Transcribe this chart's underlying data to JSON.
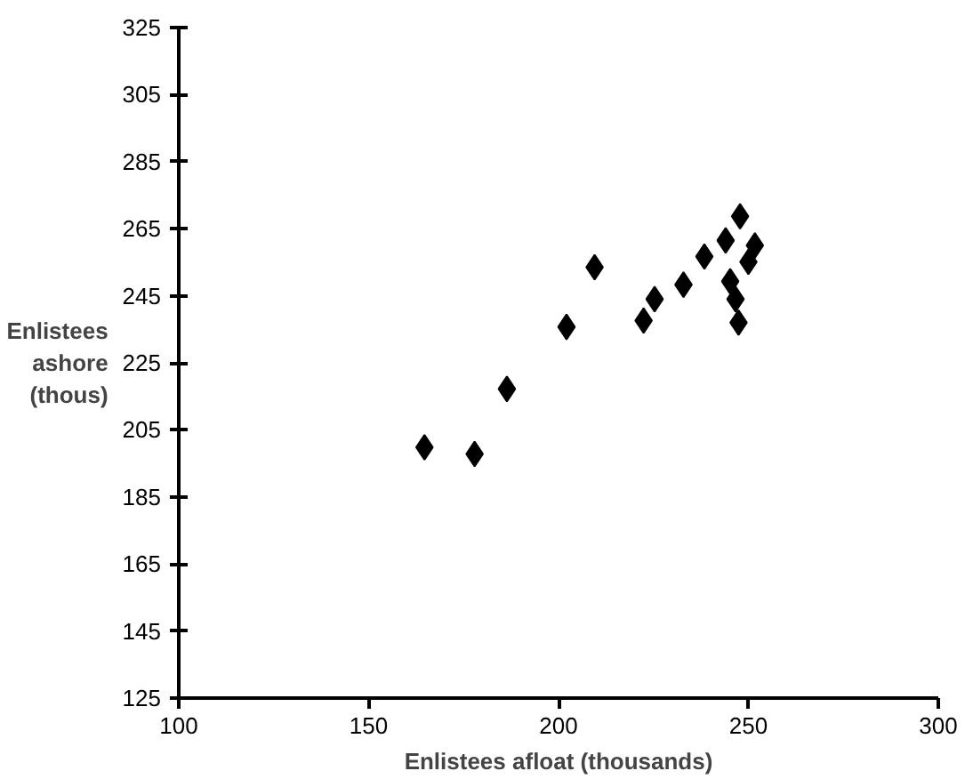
{
  "chart_data": {
    "type": "scatter",
    "xlabel": "Enlistees afloat (thousands)",
    "ylabel": "Enlistees\nashore\n(thous)",
    "x": [
      164.7,
      177.9,
      186.4,
      202.1,
      209.5,
      222.4,
      225.3,
      232.9,
      238.4,
      244.0,
      247.8,
      251.7,
      250.0,
      245.2,
      246.6,
      247.4
    ],
    "values": [
      199.8,
      197.8,
      217.2,
      235.7,
      253.5,
      237.6,
      244.0,
      248.3,
      256.7,
      261.5,
      268.7,
      260.0,
      255.1,
      249.3,
      244.0,
      237.0
    ],
    "color": "#000000",
    "marker": "diamond",
    "grid": false,
    "xlim": [
      100,
      300
    ],
    "xticks": [
      100,
      150,
      200,
      250,
      300
    ],
    "ylim": [
      125,
      325
    ],
    "yticks": [
      125,
      145,
      165,
      185,
      205,
      225,
      245,
      265,
      285,
      305,
      325
    ]
  }
}
